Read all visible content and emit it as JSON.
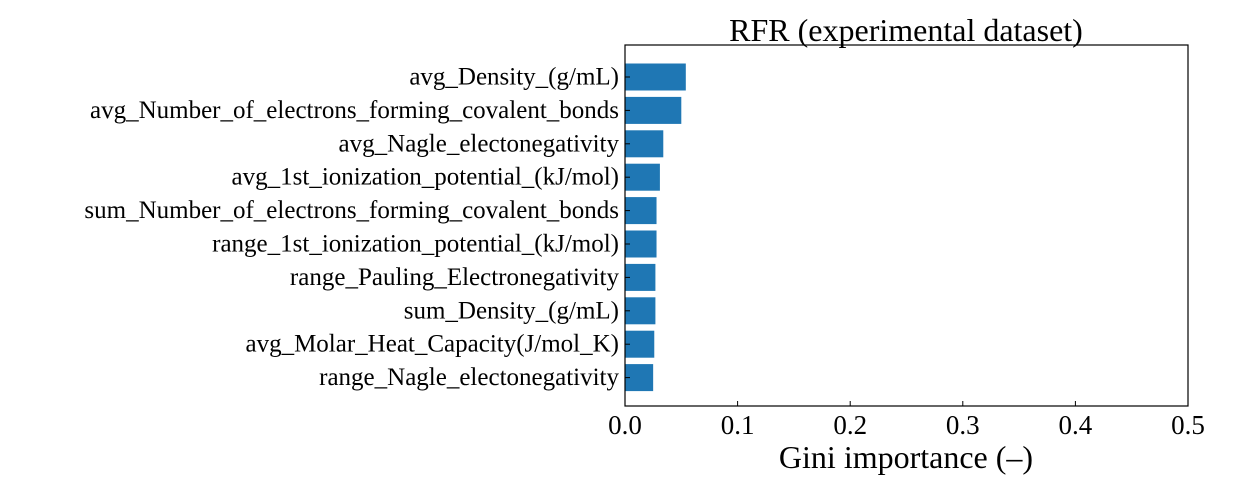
{
  "chart_data": {
    "type": "bar",
    "orientation": "horizontal",
    "title": "RFR (experimental dataset)",
    "xlabel": "Gini importance (–)",
    "ylabel": "",
    "xlim": [
      0,
      0.5
    ],
    "xticks": [
      0.0,
      0.1,
      0.2,
      0.3,
      0.4,
      0.5
    ],
    "xtick_labels": [
      "0.0",
      "0.1",
      "0.2",
      "0.3",
      "0.4",
      "0.5"
    ],
    "categories": [
      "avg_Density_(g/mL)",
      "avg_Number_of_electrons_forming_covalent_bonds",
      "avg_Nagle_electonegativity",
      "avg_1st_ionization_potential_(kJ/mol)",
      "sum_Number_of_electrons_forming_covalent_bonds",
      "range_1st_ionization_potential_(kJ/mol)",
      "range_Pauling_Electronegativity",
      "sum_Density_(g/mL)",
      "avg_Molar_Heat_Capacity(J/mol_K)",
      "range_Nagle_electonegativity"
    ],
    "values": [
      0.054,
      0.05,
      0.034,
      0.031,
      0.028,
      0.028,
      0.027,
      0.027,
      0.026,
      0.025
    ],
    "bar_color": "#1f77b4",
    "grid": false,
    "legend": "none"
  }
}
